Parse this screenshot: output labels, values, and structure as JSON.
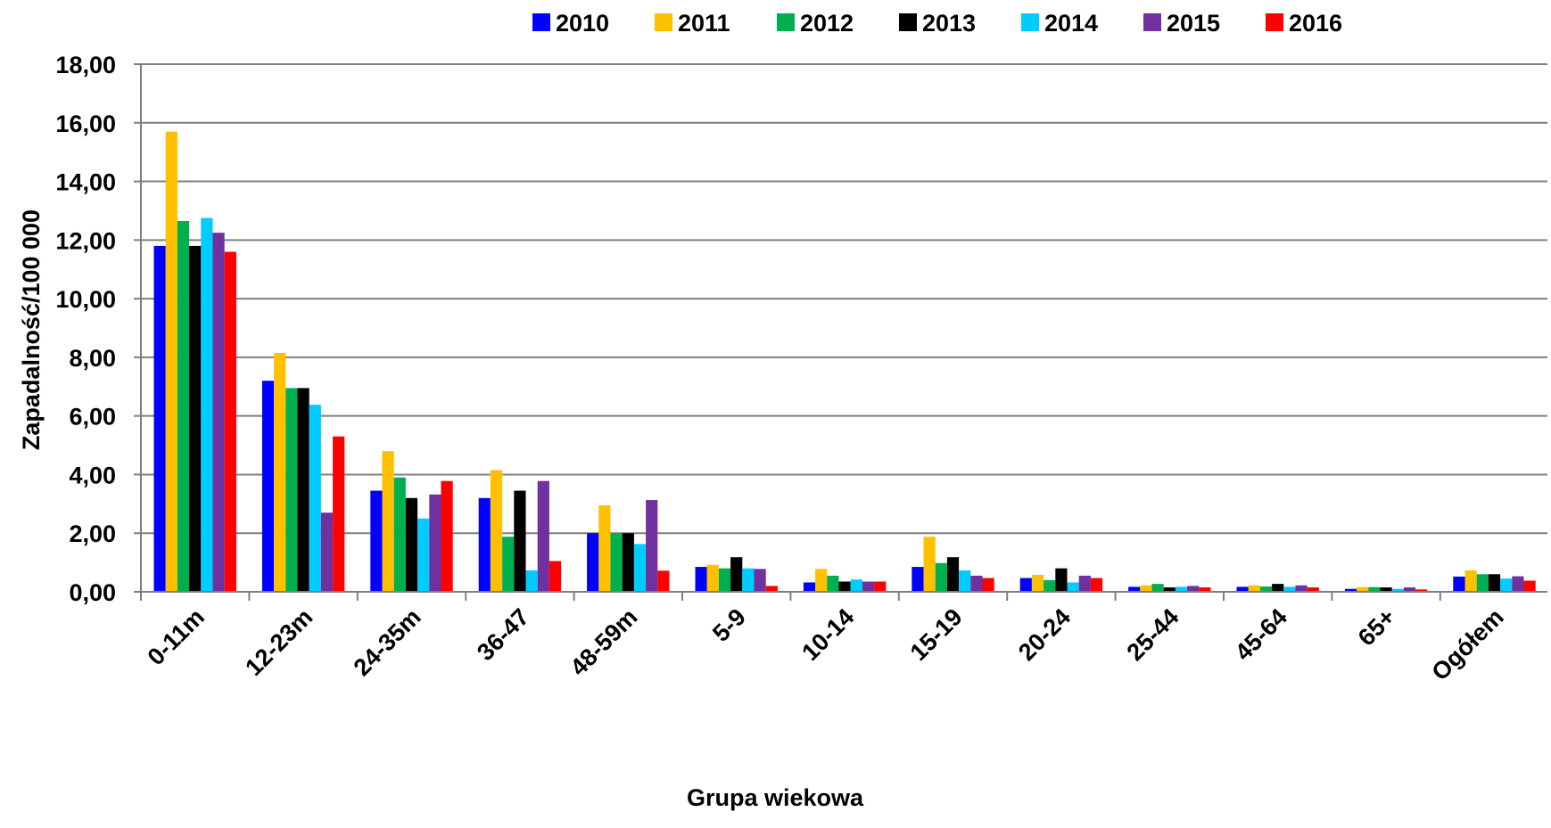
{
  "chart_data": {
    "type": "bar",
    "title": "",
    "xlabel": "Grupa wiekowa",
    "ylabel": "Zapadalność/100 000",
    "ylim": [
      0,
      18
    ],
    "yticks": [
      "0,00",
      "2,00",
      "4,00",
      "6,00",
      "8,00",
      "10,00",
      "12,00",
      "14,00",
      "16,00",
      "18,00"
    ],
    "grid": true,
    "legend_position": "top",
    "categories": [
      "0-11m",
      "12-23m",
      "24-35m",
      "36-47",
      "48-59m",
      "5-9",
      "10-14",
      "15-19",
      "20-24",
      "25-44",
      "45-64",
      "65+",
      "Ogółem"
    ],
    "series": [
      {
        "name": "2010",
        "color": "#0000FF",
        "values": [
          11.8,
          7.2,
          3.45,
          3.2,
          2.0,
          0.85,
          0.32,
          0.85,
          0.47,
          0.17,
          0.17,
          0.1,
          0.52
        ]
      },
      {
        "name": "2011",
        "color": "#FFC000",
        "values": [
          15.7,
          8.15,
          4.8,
          4.15,
          2.95,
          0.92,
          0.78,
          1.88,
          0.58,
          0.22,
          0.22,
          0.16,
          0.73
        ]
      },
      {
        "name": "2012",
        "color": "#00B050",
        "values": [
          12.65,
          6.95,
          3.9,
          1.88,
          2.0,
          0.8,
          0.55,
          0.98,
          0.4,
          0.27,
          0.18,
          0.16,
          0.6
        ]
      },
      {
        "name": "2013",
        "color": "#000000",
        "values": [
          11.8,
          6.95,
          3.2,
          3.45,
          2.0,
          1.18,
          0.35,
          1.18,
          0.8,
          0.15,
          0.27,
          0.15,
          0.6
        ]
      },
      {
        "name": "2014",
        "color": "#00CCFF",
        "values": [
          12.75,
          6.38,
          2.5,
          0.73,
          1.63,
          0.8,
          0.42,
          0.73,
          0.32,
          0.17,
          0.17,
          0.1,
          0.45
        ]
      },
      {
        "name": "2015",
        "color": "#7030A0",
        "values": [
          12.25,
          2.7,
          3.32,
          3.78,
          3.13,
          0.78,
          0.35,
          0.55,
          0.55,
          0.2,
          0.22,
          0.15,
          0.53
        ]
      },
      {
        "name": "2016",
        "color": "#FF0000",
        "values": [
          11.6,
          5.3,
          3.78,
          1.05,
          0.72,
          0.2,
          0.35,
          0.47,
          0.47,
          0.15,
          0.15,
          0.08,
          0.38
        ]
      }
    ]
  }
}
